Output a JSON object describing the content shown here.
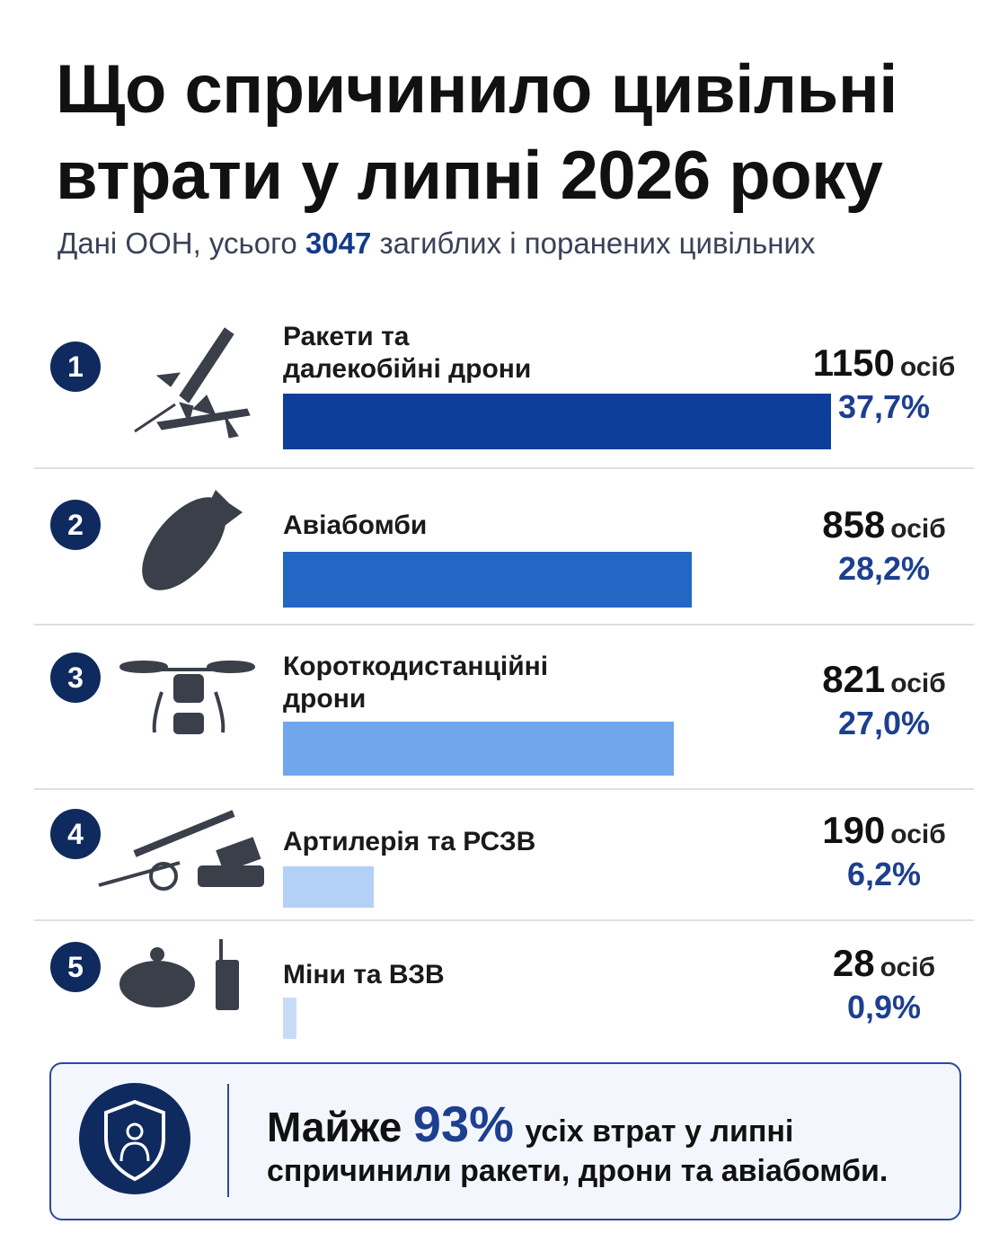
{
  "chart_data": {
    "type": "bar",
    "orientation": "horizontal",
    "title": "Що спричинило цивільні втрати у липні 2026 року",
    "subtitle_prefix": "Дані ООН, усього",
    "total": 3047,
    "subtitle_suffix": "загиблих і поранених цивільних",
    "ranks": [
      1,
      2,
      3,
      4,
      5
    ],
    "categories": [
      "Ракети та далекобійні дрони",
      "Авіабомби",
      "Короткодистанційні дрони",
      "Артилерія та РСЗВ",
      "Міни та ВЗВ"
    ],
    "unit": "осіб",
    "values": [
      1150,
      858,
      821,
      190,
      28
    ],
    "shares": [
      37.7,
      28.2,
      27.0,
      6.2,
      0.9
    ],
    "share_labels": [
      "37,7%",
      "28,2%",
      "27,0%",
      "6,2%",
      "0,9%"
    ],
    "colors": [
      "#0d3f9a",
      "#2466c4",
      "#6fa6ec",
      "#b3d0f7",
      "#c8dcf8"
    ]
  },
  "callout": {
    "prefix": "Майже",
    "share": {
      "value": 93,
      "label": "93%"
    },
    "line1": "усіх втрат у липні",
    "line2": "спричинили ракети, дрони та авіабомби."
  }
}
